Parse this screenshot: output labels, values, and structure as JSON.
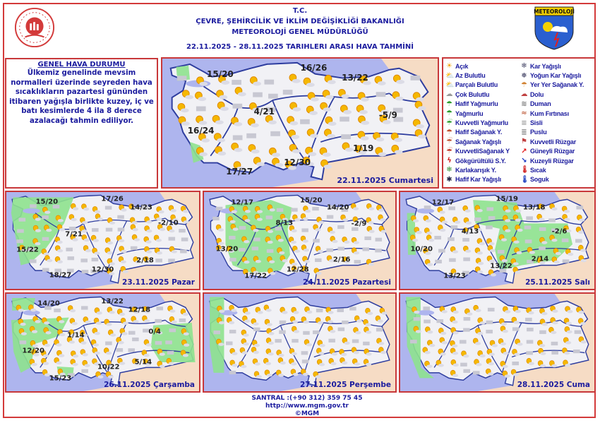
{
  "header": {
    "line1": "T.C.",
    "line2": "ÇEVRE, ŞEHİRCİLİK VE İKLİM DEĞİŞİKLİĞİ BAKANLIĞI",
    "line3": "METEOROLOJİ  GENEL  MÜDÜRLÜĞÜ",
    "dates": "22.11.2025  -  28.11.2025   TARIHLERI  ARASI  HAVA  TAHMİNİ",
    "logo_right_text": "METEOROLOJİ"
  },
  "general": {
    "title": "GENEL HAVA DURUMU",
    "text": "Ülkemiz genelinde mevsim normalleri üzerinde seyreden hava sıcaklıkların pazartesi gününden itibaren yağışla birlikte kuzey, iç ve batı kesimlerde 4 ila 8 derece azalacağı tahmin ediliyor."
  },
  "colors": {
    "border": "#c8383a",
    "text": "#1b1b9e",
    "sea": "#aeb5ee",
    "land": "#f1f1f5",
    "neighbor": "#f6dcc5",
    "rain_area": "#8ee28e",
    "region_line": "#2d3c9e"
  },
  "legend": {
    "col1": [
      {
        "label": "Açık",
        "icon": "sun-icon"
      },
      {
        "label": "Az Bulutlu",
        "icon": "sun-small-cloud-icon"
      },
      {
        "label": "Parçalı Bulutlu",
        "icon": "partly-cloudy-icon"
      },
      {
        "label": "Çok Bulutlu",
        "icon": "cloud-icon"
      },
      {
        "label": "Hafif Yağmurlu",
        "icon": "light-rain-icon"
      },
      {
        "label": "Yağmurlu",
        "icon": "rain-icon"
      },
      {
        "label": "Kuvvetli Yağmurlu",
        "icon": "heavy-rain-icon"
      },
      {
        "label": "Hafif Sağanak Y.",
        "icon": "light-shower-icon"
      },
      {
        "label": "Sağanak Yağışlı",
        "icon": "shower-icon"
      },
      {
        "label": "KuvvetliSağanak Y",
        "icon": "heavy-shower-icon"
      },
      {
        "label": "Gökgürültülü S.Y.",
        "icon": "thunderstorm-icon"
      },
      {
        "label": "Karlakarışık Y.",
        "icon": "sleet-icon"
      },
      {
        "label": "Hafif Kar Yağışlı",
        "icon": "light-snow-icon"
      }
    ],
    "col2": [
      {
        "label": "Kar Yağışlı",
        "icon": "snow-icon"
      },
      {
        "label": "Yoğun Kar Yağışlı",
        "icon": "heavy-snow-icon"
      },
      {
        "label": "Yer Yer Sağanak Y.",
        "icon": "scattered-shower-icon"
      },
      {
        "label": "Dolu",
        "icon": "hail-icon"
      },
      {
        "label": "Duman",
        "icon": "smoke-icon"
      },
      {
        "label": "Kum Fırtınası",
        "icon": "sandstorm-icon"
      },
      {
        "label": "Sisli",
        "icon": "fog-icon"
      },
      {
        "label": "Puslu",
        "icon": "haze-icon"
      },
      {
        "label": "Kuvvetli Rüzgar",
        "icon": "strong-wind-icon"
      },
      {
        "label": "Güneyli Rüzgar",
        "icon": "south-wind-arrow-icon"
      },
      {
        "label": "Kuzeyli Rüzgar",
        "icon": "north-wind-arrow-icon"
      },
      {
        "label": "Sıcak",
        "icon": "hot-thermometer-icon"
      },
      {
        "label": "Soguk",
        "icon": "cold-thermometer-icon"
      }
    ]
  },
  "maps": [
    {
      "date": "22.11.2025 Cumartesi",
      "temps": [
        "15/20",
        "16/26",
        "13/22",
        "4/21",
        "-5/9",
        "16/24",
        "1/19",
        "12/30",
        "17/27"
      ]
    },
    {
      "date": "23.11.2025 Pazar",
      "temps": [
        "15/20",
        "17/26",
        "14/23",
        "-2/10",
        "7/21",
        "15/22",
        "2/18",
        "12/30",
        "18/27"
      ]
    },
    {
      "date": "24.11.2025 Pazartesi",
      "temps": [
        "12/17",
        "15/20",
        "14/20",
        "8/13",
        "-2/9",
        "13/20",
        "2/16",
        "12/28",
        "17/22"
      ]
    },
    {
      "date": "25.11.2025 Salı",
      "temps": [
        "12/17",
        "15/19",
        "13/18",
        "4/13",
        "-2/6",
        "10/20",
        "2/14",
        "13/22",
        "13/23"
      ]
    },
    {
      "date": "26.11.2025 Çarşamba",
      "temps": [
        "14/20",
        "13/22",
        "12/18",
        "1/14",
        "0/4",
        "12/20",
        "5/14",
        "10/22",
        "15/23"
      ]
    },
    {
      "date": "27.11.2025 Perşembe",
      "temps": []
    },
    {
      "date": "28.11.2025 Cuma",
      "temps": []
    }
  ],
  "footer": {
    "phone": "SANTRAL :(+90 312) 359 75 45",
    "url": "http://www.mgm.gov.tr",
    "copyright": "©MGM"
  }
}
